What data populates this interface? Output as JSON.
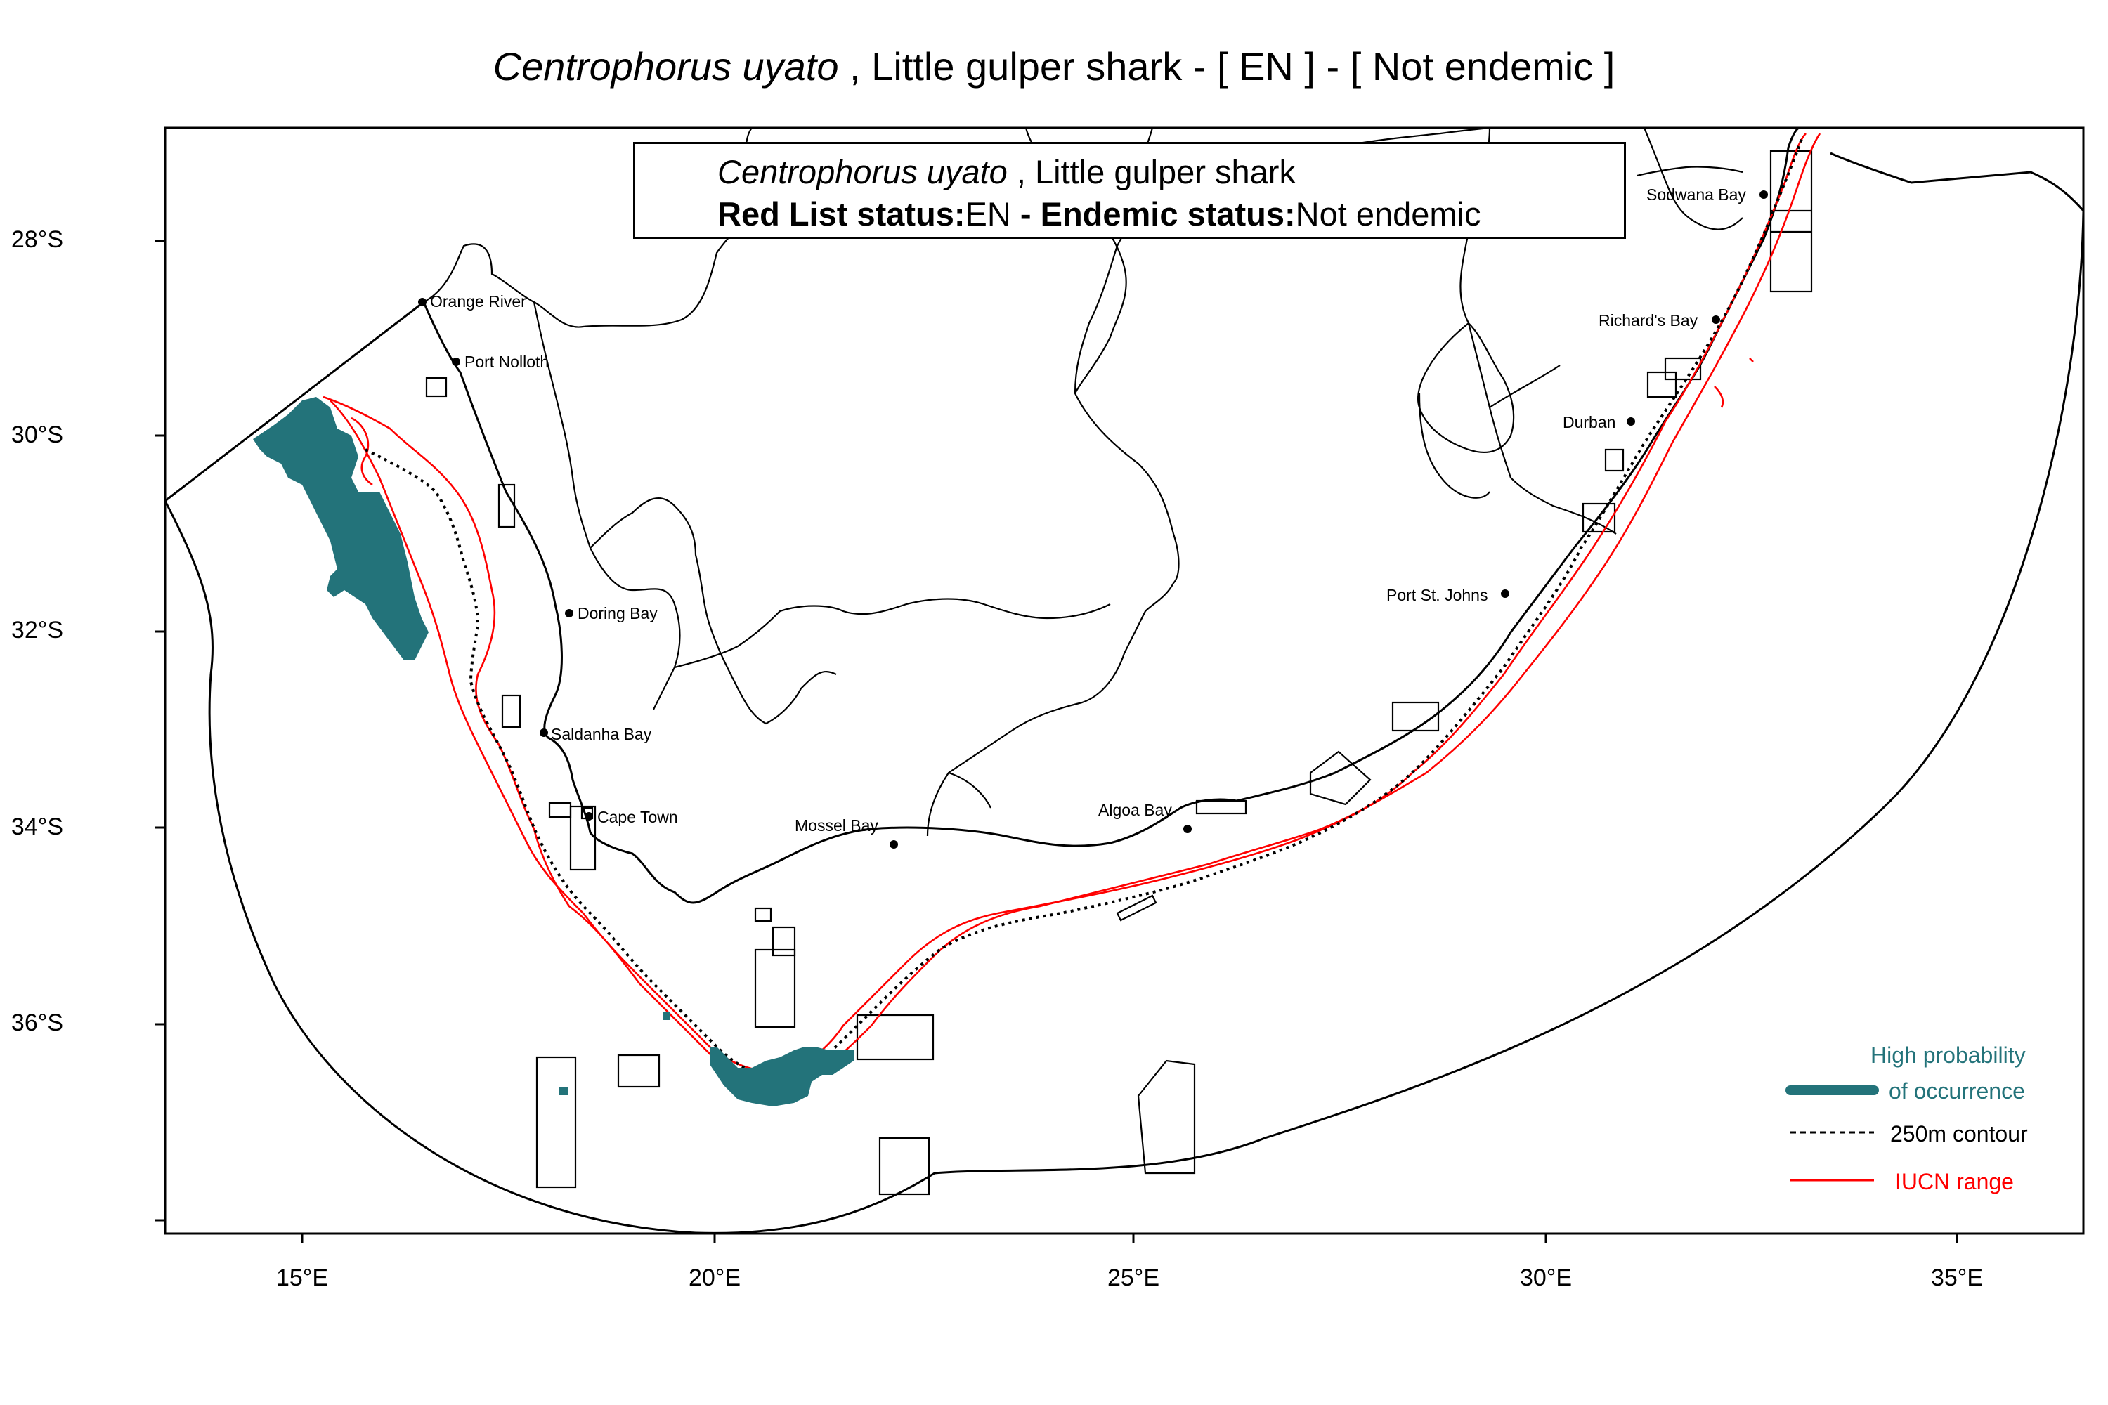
{
  "title": {
    "species": "Centrophorus uyato",
    "rest": " , Little gulper shark  - [ EN ] - [ Not endemic ]"
  },
  "info_box": {
    "species": "Centrophorus uyato",
    "common_name": " , Little gulper shark",
    "red_list_label": "Red List status:",
    "red_list_value": "EN",
    "endemic_label": " - Endemic status:",
    "endemic_value": "Not endemic"
  },
  "axes": {
    "x_ticks": [
      "15°E",
      "20°E",
      "25°E",
      "30°E",
      "35°E"
    ],
    "y_ticks": [
      "28°S",
      "30°S",
      "32°S",
      "34°S",
      "36°S"
    ]
  },
  "places": {
    "orange_river": "Orange River",
    "port_nolloth": "Port Nolloth",
    "doring_bay": "Doring Bay",
    "saldanha_bay": "Saldanha Bay",
    "cape_town": "Cape Town",
    "mossel_bay": "Mossel Bay",
    "algoa_bay": "Algoa Bay",
    "port_st_johns": "Port St. Johns",
    "durban": "Durban",
    "richards_bay": "Richard's Bay",
    "sodwana_bay": "Sodwana Bay"
  },
  "legend": {
    "high_prob_line1": "High probability",
    "high_prob_line2": "of occurrence",
    "contour": "250m contour",
    "iucn": "IUCN range"
  },
  "colors": {
    "occurrence": "#23737a",
    "iucn": "#ff0000",
    "legend_text": "#23737a",
    "outline": "#000000"
  }
}
